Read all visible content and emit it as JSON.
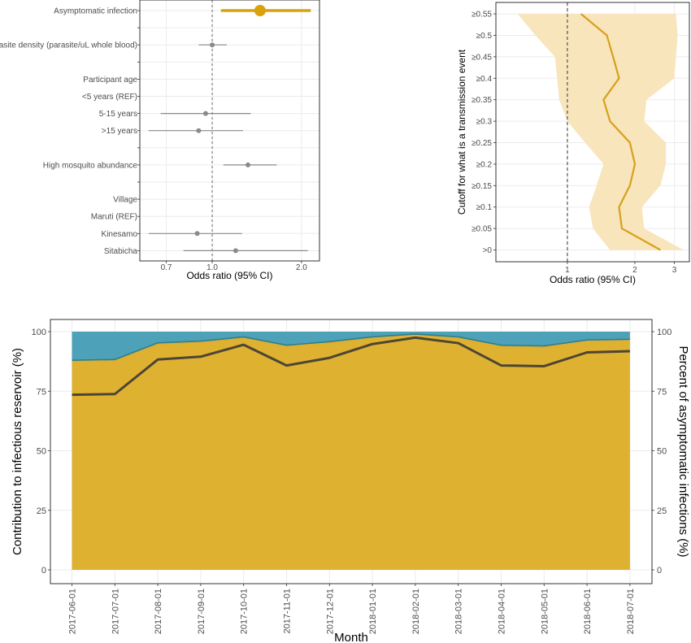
{
  "chart_data": [
    {
      "type": "forest",
      "xlabel": "Odds ratio (95% CI)",
      "x_scale": "log",
      "xlim": [
        0.57,
        2.3
      ],
      "x_ticks": [
        "0.7",
        "1.0",
        "2.0"
      ],
      "x_tick_values": [
        0.7,
        1.0,
        2.0
      ],
      "reference_line": 1.0,
      "rows": [
        {
          "label": "Asymptomatic infection",
          "or": 1.45,
          "lo": 1.07,
          "hi": 2.15,
          "highlight": true
        },
        {
          "label": "",
          "or": null
        },
        {
          "label": "Parasite density (parasite/uL whole blood)",
          "or": 1.0,
          "lo": 0.9,
          "hi": 1.12
        },
        {
          "label": "",
          "or": null
        },
        {
          "label": "Participant age",
          "or": null
        },
        {
          "label": "<5 years (REF)",
          "or": null
        },
        {
          "label": "5-15 years",
          "or": 0.95,
          "lo": 0.67,
          "hi": 1.35
        },
        {
          "label": ">15 years",
          "or": 0.9,
          "lo": 0.61,
          "hi": 1.27
        },
        {
          "label": "",
          "or": null
        },
        {
          "label": "High mosquito abundance",
          "or": 1.32,
          "lo": 1.09,
          "hi": 1.65
        },
        {
          "label": "",
          "or": null
        },
        {
          "label": "Village",
          "or": null
        },
        {
          "label": "Maruti (REF)",
          "or": null
        },
        {
          "label": "Kinesamo",
          "or": 0.89,
          "lo": 0.61,
          "hi": 1.26
        },
        {
          "label": "Sitabicha",
          "or": 1.2,
          "lo": 0.8,
          "hi": 2.1
        }
      ],
      "colors": {
        "highlight": "#dba10b",
        "point": "#8a8a8a"
      }
    },
    {
      "type": "line_ribbon",
      "xlabel": "Odds ratio (95% CI)",
      "ylabel": "Cutoff for what is a transmission event",
      "x_scale": "log",
      "xlim": [
        0.48,
        3.5
      ],
      "x_ticks": [
        "1",
        "2",
        "3"
      ],
      "x_tick_values": [
        1,
        2,
        3
      ],
      "reference_line": 1,
      "y_categories": [
        ">0",
        "≥0.05",
        "≥0.1",
        "≥0.15",
        "≥0.2",
        "≥0.25",
        "≥0.3",
        "≥0.35",
        "≥0.4",
        "≥0.45",
        "≥0.5",
        "≥0.55"
      ],
      "or": [
        2.6,
        1.75,
        1.7,
        1.9,
        2.0,
        1.9,
        1.55,
        1.45,
        1.7,
        1.6,
        1.5,
        1.15
      ],
      "low": [
        1.55,
        1.3,
        1.25,
        1.35,
        1.45,
        1.2,
        1.0,
        0.92,
        0.9,
        0.88,
        0.72,
        0.6
      ],
      "high": [
        3.3,
        2.2,
        2.15,
        2.6,
        2.75,
        2.75,
        2.2,
        2.25,
        3.0,
        3.05,
        3.1,
        3.05
      ],
      "colors": {
        "line": "#d8a01b",
        "ribbon": "#f8e5bc"
      }
    },
    {
      "type": "area",
      "xlabel": "Month",
      "ylabel": "Contribution to infectious reservoir (%)",
      "ylabel_right": "Percent of asymptomatic infections (%)",
      "ylim": [
        0,
        100
      ],
      "y_ticks": [
        0,
        25,
        50,
        75,
        100
      ],
      "categories": [
        "2017-06-01",
        "2017-07-01",
        "2017-08-01",
        "2017-09-01",
        "2017-10-01",
        "2017-11-01",
        "2017-12-01",
        "2018-01-01",
        "2018-02-01",
        "2018-03-01",
        "2018-04-01",
        "2018-05-01",
        "2018-06-01",
        "2018-07-01"
      ],
      "series": [
        {
          "values": [
            88.0,
            88.3,
            95.3,
            96.0,
            97.8,
            94.3,
            95.8,
            97.8,
            99.0,
            97.8,
            94.3,
            94.0,
            96.5,
            96.8
          ]
        },
        {
          "values": [
            100,
            100,
            100,
            100,
            100,
            100,
            100,
            100,
            100,
            100,
            100,
            100,
            100,
            100
          ]
        },
        {
          "values": [
            73.5,
            73.8,
            88.3,
            89.5,
            94.5,
            85.8,
            89.0,
            94.8,
            97.5,
            95.2,
            85.8,
            85.5,
            91.3,
            91.8
          ]
        }
      ],
      "colors": {
        "lower_area": "#dfb131",
        "upper_area": "#4da1b8",
        "band_line": "#2d7f8a",
        "line": "#4d4535",
        "grid": "#ebebeb"
      }
    }
  ]
}
